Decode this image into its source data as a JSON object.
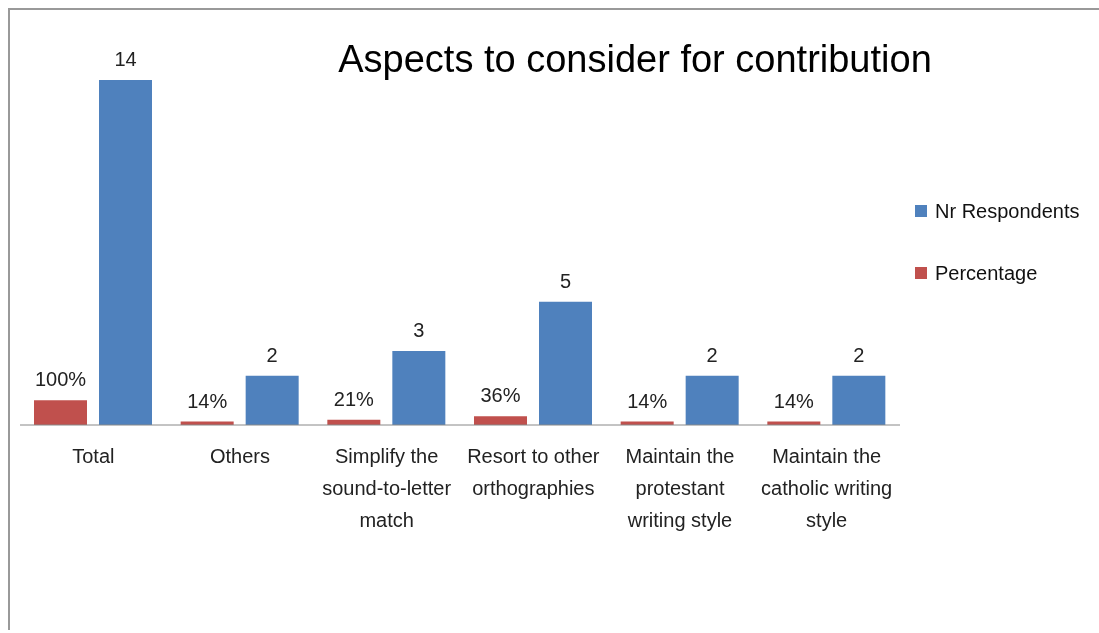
{
  "chart_data": {
    "type": "bar",
    "title": "Aspects to consider for contribution",
    "categories": [
      "Total",
      "Others",
      "Simplify the sound-to-letter match",
      "Resort to other orthographies",
      "Maintain the protestant writing style",
      "Maintain the catholic writing style"
    ],
    "series": [
      {
        "name": "Percentage",
        "color": "#c0504d",
        "values": [
          1,
          0.14,
          0.21,
          0.36,
          0.14,
          0.14
        ],
        "value_labels": [
          "100%",
          "14%",
          "21%",
          "36%",
          "14%",
          "14%"
        ]
      },
      {
        "name": "Nr Respondents",
        "color": "#4f81bd",
        "values": [
          14,
          2,
          3,
          5,
          2,
          2
        ],
        "value_labels": [
          "14",
          "2",
          "3",
          "5",
          "2",
          "2"
        ]
      }
    ],
    "legend": "right",
    "grid": false
  }
}
